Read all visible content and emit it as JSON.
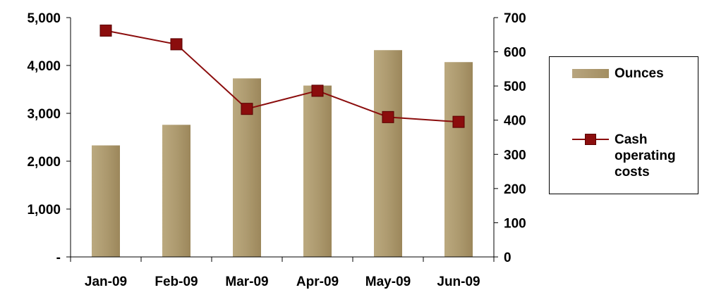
{
  "chart_data": {
    "type": "bar",
    "categories": [
      "Jan-09",
      "Feb-09",
      "Mar-09",
      "Apr-09",
      "May-09",
      "Jun-09"
    ],
    "series": [
      {
        "name": "Ounces",
        "type": "bar",
        "axis": "left",
        "values": [
          2330,
          2760,
          3730,
          3580,
          4320,
          4070
        ],
        "color": "#a8946a"
      },
      {
        "name": "Cash operating costs",
        "type": "line",
        "axis": "right",
        "values": [
          662,
          622,
          433,
          486,
          409,
          395
        ],
        "color": "#8b0d0d"
      }
    ],
    "y_left": {
      "ylim": [
        0,
        5000
      ],
      "ticks": [
        0,
        1000,
        2000,
        3000,
        4000,
        5000
      ],
      "tick_labels": [
        "-",
        "1,000",
        "2,000",
        "3,000",
        "4,000",
        "5,000"
      ]
    },
    "y_right": {
      "ylim": [
        0,
        700
      ],
      "ticks": [
        0,
        100,
        200,
        300,
        400,
        500,
        600,
        700
      ],
      "tick_labels": [
        "0",
        "100",
        "200",
        "300",
        "400",
        "500",
        "600",
        "700"
      ]
    },
    "legend": {
      "position": "right",
      "items": [
        {
          "label": "Ounces",
          "kind": "bar"
        },
        {
          "label": "Cash operating costs",
          "kind": "line-marker"
        }
      ]
    },
    "grid": false
  }
}
